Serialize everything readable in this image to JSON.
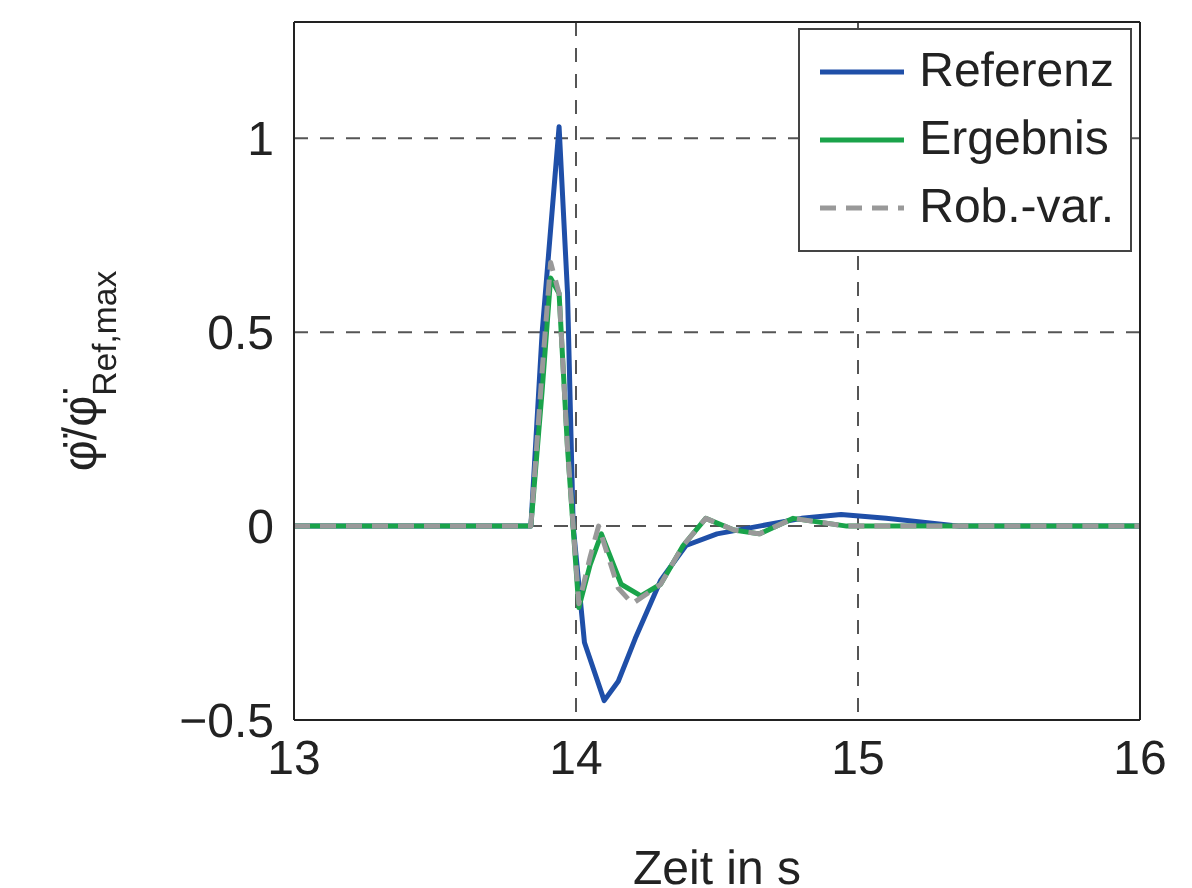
{
  "chart_data": {
    "type": "line",
    "xlabel": "Zeit in s",
    "ylabel": "φ̈/φ̈$_{Ref,max}$",
    "xlim": [
      13,
      16
    ],
    "xticks": [
      13,
      14,
      15,
      16
    ],
    "ylim": [
      -0.5,
      1.3
    ],
    "yticks": [
      {
        "value": -0.5,
        "label": "−0.5"
      },
      0,
      0.5,
      1
    ],
    "grid": true,
    "legend": "top right",
    "marker": "none",
    "series": [
      {
        "name": "Referenz",
        "color": "#1f4fa8",
        "line_style": "solid",
        "x": [
          13,
          13.84,
          13.88,
          13.94,
          13.97,
          13.99,
          14.03,
          14.1,
          14.15,
          14.21,
          14.3,
          14.39,
          14.5,
          14.65,
          14.8,
          14.94,
          15.1,
          15.36,
          15.6,
          16
        ],
        "values": [
          0,
          0,
          0.5,
          1.03,
          0.6,
          0,
          -0.3,
          -0.45,
          -0.4,
          -0.29,
          -0.14,
          -0.05,
          -0.02,
          0,
          0.02,
          0.03,
          0.02,
          0,
          0,
          0
        ]
      },
      {
        "name": "Ergebnis",
        "color": "#1aa34a",
        "line_style": "solid",
        "x": [
          13,
          13.84,
          13.88,
          13.91,
          13.94,
          13.97,
          14.01,
          14.05,
          14.09,
          14.16,
          14.23,
          14.3,
          14.38,
          14.46,
          14.56,
          14.65,
          14.77,
          14.96,
          15.2,
          15.5,
          16
        ],
        "values": [
          0,
          0,
          0.35,
          0.64,
          0.6,
          0.2,
          -0.21,
          -0.1,
          -0.02,
          -0.15,
          -0.18,
          -0.15,
          -0.05,
          0.02,
          -0.01,
          -0.02,
          0.02,
          0,
          0,
          0,
          0
        ]
      },
      {
        "name": "Rob.-var.",
        "color": "#999999",
        "line_style": "dashed",
        "x": [
          13,
          13.84,
          13.88,
          13.91,
          13.94,
          13.97,
          14.01,
          14.05,
          14.08,
          14.15,
          14.2,
          14.3,
          14.38,
          14.46,
          14.56,
          14.65,
          14.77,
          14.96,
          15.2,
          15.5,
          16
        ],
        "values": [
          0,
          0,
          0.4,
          0.68,
          0.6,
          0.2,
          -0.2,
          -0.08,
          0,
          -0.16,
          -0.2,
          -0.15,
          -0.05,
          0.02,
          -0.01,
          -0.02,
          0.02,
          0,
          0,
          0,
          0
        ]
      }
    ]
  }
}
